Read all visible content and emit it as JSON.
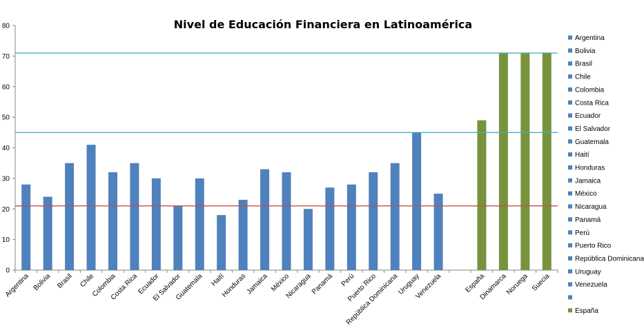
{
  "chart_data": {
    "type": "bar",
    "title": "Nivel de Educación Financiera en Latinoamérica",
    "xlabel": "",
    "ylabel": "",
    "ylim": [
      0,
      80
    ],
    "yticks": [
      0,
      10,
      20,
      30,
      40,
      50,
      60,
      70,
      80
    ],
    "grid": false,
    "legend_position": "right",
    "categories": [
      "Argentina",
      "Bolivia",
      "Brasil",
      "Chile",
      "Colombia",
      "Costa Rica",
      "Ecuador",
      "El Salvador",
      "Guatemala",
      "Haití",
      "Honduras",
      "Jamaica",
      "México",
      "Nicaragua",
      "Panamá",
      "Perú",
      "Puerto Rico",
      "República Dominicana",
      "Uruguay",
      "Venezuela",
      "",
      "España",
      "Dinamarca",
      "Noruega",
      "Suecia"
    ],
    "values": [
      28,
      24,
      35,
      41,
      32,
      35,
      30,
      21,
      30,
      18,
      23,
      33,
      32,
      20,
      27,
      28,
      32,
      35,
      45,
      25,
      null,
      49,
      71,
      71,
      71
    ],
    "bar_colors": [
      "#4f81bd",
      "#4f81bd",
      "#4f81bd",
      "#4f81bd",
      "#4f81bd",
      "#4f81bd",
      "#4f81bd",
      "#4f81bd",
      "#4f81bd",
      "#4f81bd",
      "#4f81bd",
      "#4f81bd",
      "#4f81bd",
      "#4f81bd",
      "#4f81bd",
      "#4f81bd",
      "#4f81bd",
      "#4f81bd",
      "#4f81bd",
      "#4f81bd",
      "#4f81bd",
      "#77933c",
      "#77933c",
      "#77933c",
      "#77933c"
    ],
    "reference_lines": [
      {
        "y": 71,
        "color": "#4bacc6"
      },
      {
        "y": 45,
        "color": "#4bacc6"
      },
      {
        "y": 21,
        "color": "#c0504d"
      }
    ],
    "legend": [
      {
        "label": "Argentina",
        "color": "#4f81bd"
      },
      {
        "label": "Bolivia",
        "color": "#4f81bd"
      },
      {
        "label": "Brasil",
        "color": "#4f81bd"
      },
      {
        "label": "Chile",
        "color": "#4f81bd"
      },
      {
        "label": "Colombia",
        "color": "#4f81bd"
      },
      {
        "label": "Costa Rica",
        "color": "#4f81bd"
      },
      {
        "label": "Ecuador",
        "color": "#4f81bd"
      },
      {
        "label": "El Salvador",
        "color": "#4f81bd"
      },
      {
        "label": "Guatemala",
        "color": "#4f81bd"
      },
      {
        "label": "Haití",
        "color": "#4f81bd"
      },
      {
        "label": "Honduras",
        "color": "#4f81bd"
      },
      {
        "label": "Jamaica",
        "color": "#4f81bd"
      },
      {
        "label": "México",
        "color": "#4f81bd"
      },
      {
        "label": "Nicaragua",
        "color": "#4f81bd"
      },
      {
        "label": "Panamá",
        "color": "#4f81bd"
      },
      {
        "label": "Perú",
        "color": "#4f81bd"
      },
      {
        "label": "Puerto Rico",
        "color": "#4f81bd"
      },
      {
        "label": "República Dominicana",
        "color": "#4f81bd"
      },
      {
        "label": "Uruguay",
        "color": "#4f81bd"
      },
      {
        "label": "Venezuela",
        "color": "#4f81bd"
      },
      {
        "label": "",
        "color": "#4f81bd"
      },
      {
        "label": "España",
        "color": "#77933c"
      }
    ]
  }
}
